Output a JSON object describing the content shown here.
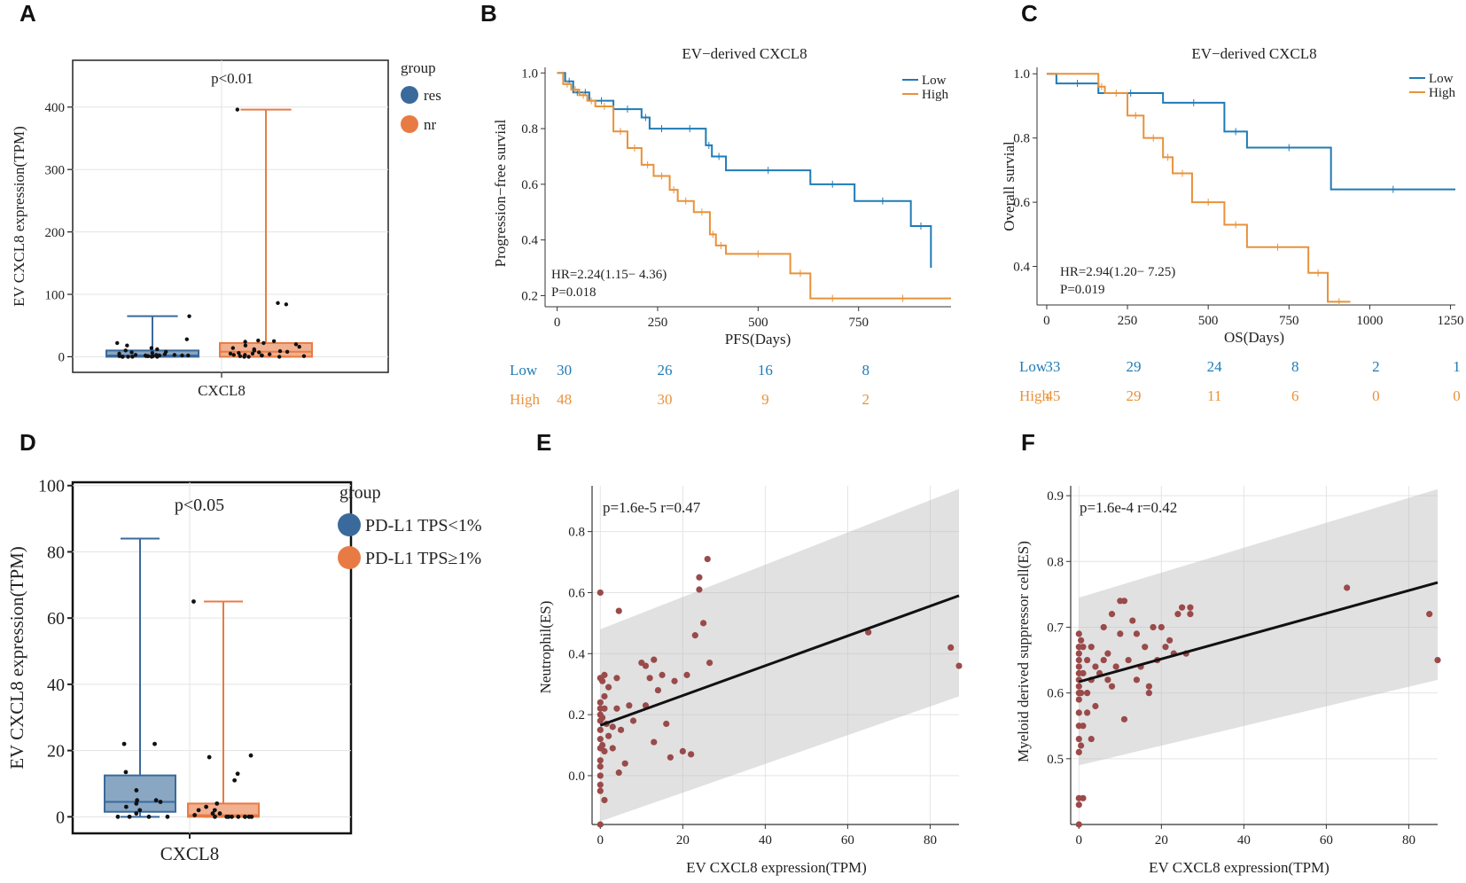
{
  "chart_data": [
    {
      "panel": "A",
      "type": "box",
      "title": "",
      "annotation": "p<0.01",
      "xlabel": "",
      "ylabel": "EV CXCL8 expression(TPM)",
      "categories": [
        "CXCL8"
      ],
      "ylim": [
        -25,
        475
      ],
      "yticks": [
        0,
        100,
        200,
        300,
        400
      ],
      "legend": {
        "title": "group",
        "entries": [
          "res",
          "nr"
        ],
        "colors": [
          "#3a6a9b",
          "#e87b44"
        ]
      },
      "series": [
        {
          "name": "res",
          "min": 0,
          "q1": 0,
          "median": 2,
          "q3": 10,
          "max": 65
        },
        {
          "name": "nr",
          "min": 0,
          "q1": 0,
          "median": 8,
          "q3": 22,
          "max": 396
        }
      ]
    },
    {
      "panel": "B",
      "type": "line",
      "title": "EV−derived CXCL8",
      "xlabel": "PFS(Days)",
      "ylabel": "Progression−free survial",
      "xlim": [
        -30,
        980
      ],
      "ylim": [
        0.16,
        1.02
      ],
      "xticks": [
        0,
        250,
        500,
        750
      ],
      "yticks": [
        0.2,
        0.4,
        0.6,
        0.8,
        1.0
      ],
      "annotation": [
        "HR=2.24(1.15− 4.36)",
        "P=0.018"
      ],
      "series": [
        {
          "name": "Low",
          "color": "#1f7bb6",
          "x": [
            0,
            20,
            40,
            60,
            80,
            140,
            210,
            230,
            290,
            370,
            385,
            420,
            630,
            740,
            880,
            930
          ],
          "y": [
            1.0,
            0.97,
            0.93,
            0.93,
            0.9,
            0.87,
            0.84,
            0.8,
            0.8,
            0.74,
            0.7,
            0.65,
            0.6,
            0.54,
            0.45,
            0.3
          ]
        },
        {
          "name": "High",
          "color": "#e8923a",
          "x": [
            0,
            15,
            35,
            55,
            75,
            95,
            140,
            175,
            210,
            240,
            280,
            300,
            340,
            380,
            395,
            420,
            580,
            630,
            740,
            980
          ],
          "y": [
            1.0,
            0.96,
            0.94,
            0.92,
            0.9,
            0.88,
            0.79,
            0.73,
            0.67,
            0.63,
            0.58,
            0.54,
            0.5,
            0.42,
            0.38,
            0.35,
            0.28,
            0.19,
            0.19,
            0.19
          ]
        }
      ],
      "risk_table": {
        "times": [
          0,
          250,
          500,
          750
        ],
        "rows": [
          {
            "name": "Low",
            "values": [
              30,
              26,
              16,
              8
            ]
          },
          {
            "name": "High",
            "values": [
              48,
              30,
              9,
              2
            ]
          }
        ]
      }
    },
    {
      "panel": "C",
      "type": "line",
      "title": "EV−derived CXCL8",
      "xlabel": "OS(Days)",
      "ylabel": "Overall survial",
      "xlim": [
        -30,
        1265
      ],
      "ylim": [
        0.28,
        1.02
      ],
      "xticks": [
        0,
        250,
        500,
        750,
        1000,
        1250
      ],
      "yticks": [
        0.4,
        0.6,
        0.8,
        1.0
      ],
      "annotation": [
        "HR=2.94(1.20− 7.25)",
        "P=0.019"
      ],
      "series": [
        {
          "name": "Low",
          "color": "#1f7bb6",
          "x": [
            0,
            30,
            160,
            360,
            550,
            620,
            880,
            1265
          ],
          "y": [
            1.0,
            0.97,
            0.94,
            0.91,
            0.82,
            0.77,
            0.64,
            0.64
          ]
        },
        {
          "name": "High",
          "color": "#e8923a",
          "x": [
            0,
            160,
            180,
            250,
            300,
            360,
            390,
            450,
            550,
            620,
            810,
            870,
            940
          ],
          "y": [
            1.0,
            0.96,
            0.94,
            0.87,
            0.8,
            0.74,
            0.69,
            0.6,
            0.53,
            0.46,
            0.38,
            0.29,
            0.29
          ]
        }
      ],
      "risk_table": {
        "times": [
          0,
          250,
          500,
          750,
          1000,
          1250
        ],
        "rows": [
          {
            "name": "Low",
            "values": [
              33,
              29,
              24,
              8,
              2,
              1
            ]
          },
          {
            "name": "High",
            "values": [
              45,
              29,
              11,
              6,
              0,
              0
            ]
          }
        ]
      }
    },
    {
      "panel": "D",
      "type": "box",
      "title": "",
      "annotation": "p<0.05",
      "xlabel": "",
      "ylabel": "EV CXCL8 expression(TPM)",
      "categories": [
        "CXCL8"
      ],
      "ylim": [
        -5,
        101
      ],
      "yticks": [
        0,
        20,
        40,
        60,
        80,
        100
      ],
      "legend": {
        "title": "group",
        "entries": [
          "PD-L1 TPS<1%",
          "PD-L1 TPS≥1%"
        ],
        "colors": [
          "#3a6a9b",
          "#e87b44"
        ]
      },
      "series": [
        {
          "name": "PD-L1 TPS<1%",
          "min": 0,
          "q1": 1.5,
          "median": 4.5,
          "q3": 12.5,
          "max": 84
        },
        {
          "name": "PD-L1 TPS≥1%",
          "min": 0,
          "q1": 0,
          "median": 0.5,
          "q3": 4,
          "max": 65
        }
      ]
    },
    {
      "panel": "E",
      "type": "scatter",
      "title": "",
      "xlabel": "EV CXCL8 expression(TPM)",
      "ylabel": "Neutrophil(ES)",
      "annotation": "p=1.6e-5 r=0.47",
      "xlim": [
        -2,
        87
      ],
      "ylim": [
        -0.16,
        0.95
      ],
      "xticks": [
        0,
        20,
        40,
        60,
        80
      ],
      "yticks": [
        0.0,
        0.2,
        0.4,
        0.6,
        0.8
      ],
      "fit": {
        "x": [
          0,
          87
        ],
        "y": [
          0.165,
          0.59
        ],
        "band_lower": [
          -0.15,
          0.26
        ],
        "band_upper": [
          0.48,
          0.94
        ]
      },
      "points": [
        [
          0,
          0.6
        ],
        [
          0,
          0.32
        ],
        [
          0,
          0.24
        ],
        [
          0,
          0.22
        ],
        [
          0,
          0.2
        ],
        [
          0,
          0.18
        ],
        [
          0,
          0.15
        ],
        [
          0,
          0.12
        ],
        [
          0,
          0.09
        ],
        [
          0,
          0.05
        ],
        [
          0,
          0.03
        ],
        [
          0,
          0.0
        ],
        [
          0,
          -0.03
        ],
        [
          0,
          -0.05
        ],
        [
          0,
          -0.16
        ],
        [
          0.5,
          0.31
        ],
        [
          0.5,
          0.19
        ],
        [
          0.5,
          0.1
        ],
        [
          1,
          0.33
        ],
        [
          1,
          0.26
        ],
        [
          1,
          0.22
        ],
        [
          1,
          0.08
        ],
        [
          1,
          -0.08
        ],
        [
          1.5,
          0.17
        ],
        [
          2,
          0.29
        ],
        [
          2,
          0.13
        ],
        [
          3,
          0.16
        ],
        [
          3,
          0.09
        ],
        [
          4,
          0.32
        ],
        [
          4,
          0.22
        ],
        [
          4.5,
          0.54
        ],
        [
          4.5,
          0.01
        ],
        [
          5,
          0.15
        ],
        [
          6,
          0.04
        ],
        [
          7,
          0.23
        ],
        [
          8,
          0.18
        ],
        [
          10,
          0.37
        ],
        [
          11,
          0.36
        ],
        [
          11,
          0.23
        ],
        [
          12,
          0.32
        ],
        [
          13,
          0.38
        ],
        [
          13,
          0.11
        ],
        [
          14,
          0.28
        ],
        [
          15,
          0.33
        ],
        [
          16,
          0.17
        ],
        [
          17,
          0.06
        ],
        [
          18,
          0.31
        ],
        [
          20,
          0.08
        ],
        [
          21,
          0.33
        ],
        [
          22,
          0.07
        ],
        [
          23,
          0.46
        ],
        [
          24,
          0.61
        ],
        [
          24,
          0.65
        ],
        [
          25,
          0.5
        ],
        [
          26,
          0.71
        ],
        [
          26.5,
          0.37
        ],
        [
          65,
          0.47
        ],
        [
          85,
          0.42
        ],
        [
          87,
          0.36
        ]
      ]
    },
    {
      "panel": "F",
      "type": "scatter",
      "title": "",
      "xlabel": "EV CXCL8 expression(TPM)",
      "ylabel": "Myeloid derived suppressor cell(ES)",
      "annotation": "p=1.6e-4 r=0.42",
      "xlim": [
        -2,
        87
      ],
      "ylim": [
        0.4,
        0.915
      ],
      "xticks": [
        0,
        20,
        40,
        60,
        80
      ],
      "yticks": [
        0.5,
        0.6,
        0.7,
        0.8,
        0.9
      ],
      "fit": {
        "x": [
          0,
          87
        ],
        "y": [
          0.617,
          0.768
        ],
        "band_lower": [
          0.49,
          0.62
        ],
        "band_upper": [
          0.745,
          0.91
        ]
      },
      "points": [
        [
          0,
          0.69
        ],
        [
          0,
          0.67
        ],
        [
          0,
          0.66
        ],
        [
          0,
          0.65
        ],
        [
          0,
          0.64
        ],
        [
          0,
          0.63
        ],
        [
          0,
          0.62
        ],
        [
          0,
          0.61
        ],
        [
          0,
          0.6
        ],
        [
          0,
          0.59
        ],
        [
          0,
          0.57
        ],
        [
          0,
          0.55
        ],
        [
          0,
          0.53
        ],
        [
          0,
          0.51
        ],
        [
          0,
          0.44
        ],
        [
          0,
          0.43
        ],
        [
          0,
          0.4
        ],
        [
          0.5,
          0.68
        ],
        [
          0.5,
          0.6
        ],
        [
          0.5,
          0.52
        ],
        [
          1,
          0.67
        ],
        [
          1,
          0.63
        ],
        [
          1,
          0.55
        ],
        [
          1,
          0.44
        ],
        [
          2,
          0.65
        ],
        [
          2,
          0.6
        ],
        [
          2,
          0.57
        ],
        [
          3,
          0.67
        ],
        [
          3,
          0.62
        ],
        [
          3,
          0.53
        ],
        [
          4,
          0.64
        ],
        [
          4,
          0.58
        ],
        [
          5,
          0.63
        ],
        [
          6,
          0.7
        ],
        [
          6,
          0.65
        ],
        [
          7,
          0.66
        ],
        [
          7,
          0.62
        ],
        [
          8,
          0.72
        ],
        [
          8,
          0.61
        ],
        [
          9,
          0.64
        ],
        [
          10,
          0.69
        ],
        [
          10,
          0.74
        ],
        [
          11,
          0.56
        ],
        [
          11,
          0.74
        ],
        [
          12,
          0.65
        ],
        [
          13,
          0.71
        ],
        [
          14,
          0.62
        ],
        [
          14,
          0.69
        ],
        [
          15,
          0.64
        ],
        [
          16,
          0.67
        ],
        [
          17,
          0.6
        ],
        [
          17,
          0.61
        ],
        [
          18,
          0.7
        ],
        [
          19,
          0.65
        ],
        [
          20,
          0.7
        ],
        [
          21,
          0.67
        ],
        [
          22,
          0.68
        ],
        [
          23,
          0.66
        ],
        [
          24,
          0.72
        ],
        [
          25,
          0.73
        ],
        [
          26,
          0.66
        ],
        [
          27,
          0.72
        ],
        [
          27,
          0.73
        ],
        [
          65,
          0.76
        ],
        [
          85,
          0.72
        ],
        [
          87,
          0.65
        ]
      ]
    }
  ]
}
